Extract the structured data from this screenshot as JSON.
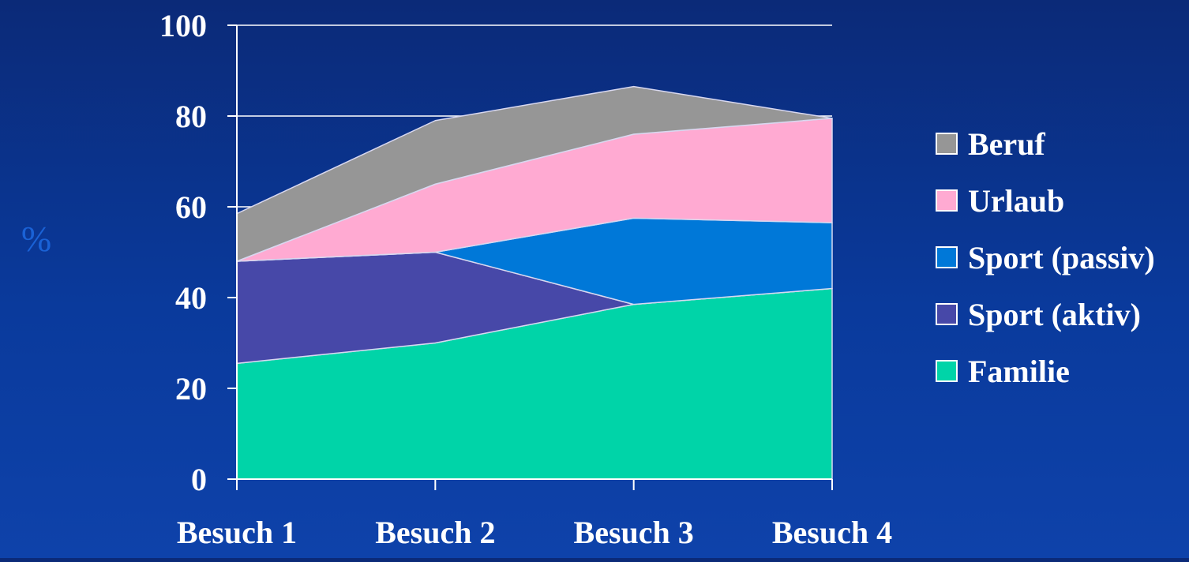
{
  "chart_data": {
    "type": "area",
    "stacked": true,
    "categories": [
      "Besuch 1",
      "Besuch 2",
      "Besuch 3",
      "Besuch 4"
    ],
    "series": [
      {
        "name": "Familie",
        "values": [
          25.5,
          30,
          38.5,
          42
        ],
        "color": "#00d4a8"
      },
      {
        "name": "Sport (aktiv)",
        "values": [
          22.5,
          20,
          0,
          0
        ],
        "color": "#4748a8"
      },
      {
        "name": "Sport (passiv)",
        "values": [
          0,
          0,
          19,
          14.5
        ],
        "color": "#0078d8"
      },
      {
        "name": "Urlaub",
        "values": [
          0,
          15,
          18.5,
          23
        ],
        "color": "#ffaad2"
      },
      {
        "name": "Beruf",
        "values": [
          10.5,
          14,
          10.5,
          0
        ],
        "color": "#969696"
      }
    ],
    "ylabel": "%",
    "ylim": [
      0,
      100
    ],
    "yticks": [
      0,
      20,
      40,
      60,
      80,
      100
    ],
    "grid": true,
    "legend_position": "right"
  }
}
